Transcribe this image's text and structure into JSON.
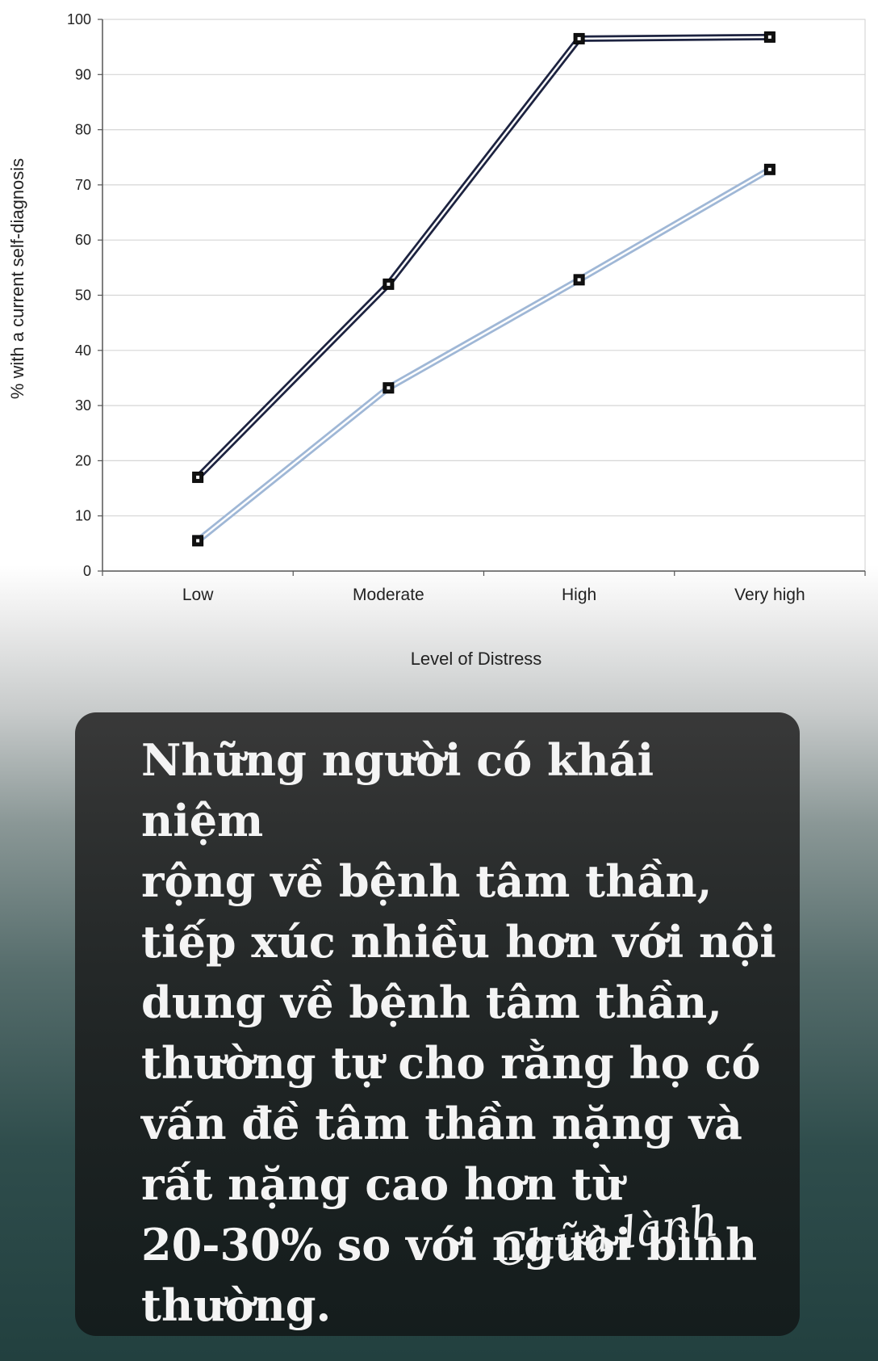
{
  "chart_data": {
    "type": "line",
    "categories": [
      "Low",
      "Moderate",
      "High",
      "Very high"
    ],
    "series": [
      {
        "values": [
          17,
          52,
          96.5,
          96.8
        ],
        "color": "#1d2340"
      },
      {
        "values": [
          5.5,
          33.2,
          52.8,
          72.8
        ],
        "color": "#9fb7d6"
      }
    ],
    "title": "",
    "xlabel": "Level of Distress",
    "ylabel": "% with a current self-diagnosis",
    "ylim": [
      0,
      100
    ],
    "yticks": [
      0,
      10,
      20,
      30,
      40,
      50,
      60,
      70,
      80,
      90,
      100
    ],
    "grid": true,
    "legend": "none"
  },
  "quote": {
    "lines": [
      "Những người có khái niệm",
      "rộng về bệnh tâm thần,",
      "tiếp xúc nhiều hơn với nội",
      "dung về bệnh tâm thần,",
      "thường tự cho rằng họ có",
      "vấn đề tâm thần nặng và",
      "rất nặng cao hơn từ",
      "20-30% so với người bình",
      "thường."
    ],
    "signature": "Chữa lành"
  },
  "colors": {
    "card_background": "#262b2b",
    "quote_text": "#f4f4f4",
    "gridline": "#d6d6d6"
  }
}
